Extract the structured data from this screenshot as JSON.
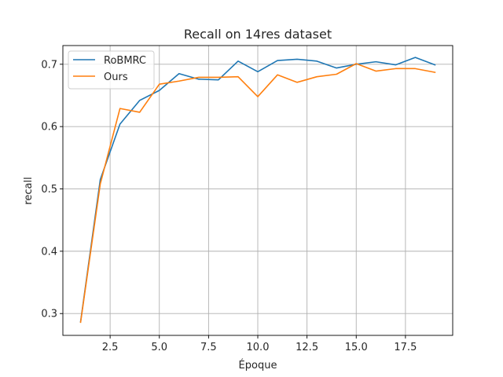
{
  "chart_data": {
    "type": "line",
    "title": "Recall on 14res dataset",
    "xlabel": "Époque",
    "ylabel": "recall",
    "xlim": [
      0.1,
      19.9
    ],
    "ylim": [
      0.265,
      0.73
    ],
    "xticks": [
      2.5,
      5.0,
      7.5,
      10.0,
      12.5,
      15.0,
      17.5
    ],
    "xtick_labels": [
      "2.5",
      "5.0",
      "7.5",
      "10.0",
      "12.5",
      "15.0",
      "17.5"
    ],
    "yticks": [
      0.3,
      0.4,
      0.5,
      0.6,
      0.7
    ],
    "ytick_labels": [
      "0.3",
      "0.4",
      "0.5",
      "0.6",
      "0.7"
    ],
    "grid": true,
    "legend_position": "top-left",
    "x": [
      1,
      2,
      3,
      4,
      5,
      6,
      7,
      8,
      9,
      10,
      11,
      12,
      13,
      14,
      15,
      16,
      17,
      18,
      19
    ],
    "series": [
      {
        "name": "RoBMRC",
        "color": "#1f77b4",
        "values": [
          0.287,
          0.515,
          0.604,
          0.642,
          0.658,
          0.685,
          0.676,
          0.675,
          0.705,
          0.688,
          0.706,
          0.708,
          0.705,
          0.694,
          0.7,
          0.704,
          0.699,
          0.711,
          0.699
        ]
      },
      {
        "name": "Ours",
        "color": "#ff7f0e",
        "values": [
          0.286,
          0.508,
          0.629,
          0.623,
          0.668,
          0.673,
          0.679,
          0.679,
          0.68,
          0.648,
          0.683,
          0.671,
          0.68,
          0.684,
          0.701,
          0.689,
          0.693,
          0.693,
          0.687
        ]
      }
    ]
  }
}
